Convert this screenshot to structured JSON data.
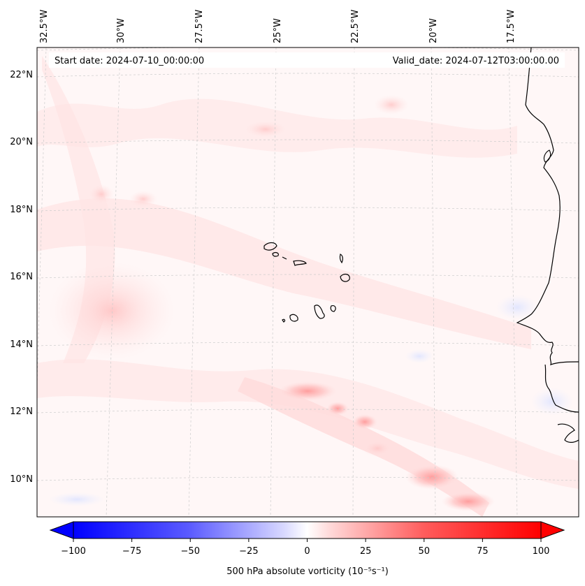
{
  "map": {
    "start_date": "Start date: 2024-07-10_00:00:00",
    "valid_date": "Valid_date: 2024-07-12T03:00:00.00",
    "lon_labels": [
      "32.5°W",
      "30°W",
      "27.5°W",
      "25°W",
      "22.5°W",
      "20°W",
      "17.5°W"
    ],
    "lat_labels": [
      "22°N",
      "20°N",
      "18°N",
      "16°N",
      "14°N",
      "12°N",
      "10°N"
    ],
    "colors": {
      "positive": "#ff0000",
      "negative": "#0000ff",
      "neutral": "#ffffff",
      "coast": "#000000"
    }
  },
  "colorbar": {
    "label": "500 hPa absolute vorticity (10$^{-5}$s$^{-1}$)",
    "label_display": "500 hPa absolute vorticity (10⁻⁵s⁻¹)",
    "min": -100,
    "max": 100,
    "ticks": [
      "−100",
      "−75",
      "−50",
      "−25",
      "0",
      "25",
      "50",
      "75",
      "100"
    ]
  }
}
